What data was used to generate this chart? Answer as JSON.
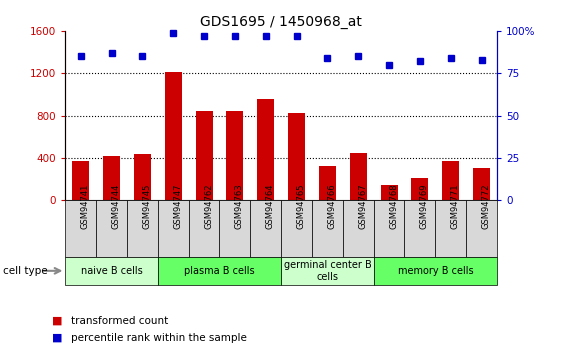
{
  "title": "GDS1695 / 1450968_at",
  "samples": [
    "GSM94741",
    "GSM94744",
    "GSM94745",
    "GSM94747",
    "GSM94762",
    "GSM94763",
    "GSM94764",
    "GSM94765",
    "GSM94766",
    "GSM94767",
    "GSM94768",
    "GSM94769",
    "GSM94771",
    "GSM94772"
  ],
  "transformed_count": [
    370,
    420,
    440,
    1210,
    840,
    840,
    960,
    820,
    320,
    450,
    145,
    210,
    370,
    300
  ],
  "percentile_rank": [
    85,
    87,
    85,
    99,
    97,
    97,
    97,
    97,
    84,
    85,
    80,
    82,
    84,
    83
  ],
  "bar_color": "#cc0000",
  "dot_color": "#0000cc",
  "ylim_left": [
    0,
    1600
  ],
  "ylim_right": [
    0,
    100
  ],
  "yticks_left": [
    0,
    400,
    800,
    1200,
    1600
  ],
  "yticks_right": [
    0,
    25,
    50,
    75,
    100
  ],
  "ytick_labels_right": [
    "0",
    "25",
    "50",
    "75",
    "100%"
  ],
  "cell_types": [
    {
      "label": "naive B cells",
      "start": 0,
      "end": 3,
      "color": "#ccffcc"
    },
    {
      "label": "plasma B cells",
      "start": 3,
      "end": 7,
      "color": "#66ff66"
    },
    {
      "label": "germinal center B\ncells",
      "start": 7,
      "end": 10,
      "color": "#ccffcc"
    },
    {
      "label": "memory B cells",
      "start": 10,
      "end": 14,
      "color": "#66ff66"
    }
  ],
  "legend_bar_label": "transformed count",
  "legend_dot_label": "percentile rank within the sample",
  "cell_type_label": "cell type",
  "tick_color_left": "#cc0000",
  "tick_color_right": "#0000cc",
  "background_color": "#ffffff",
  "sample_bg": "#d8d8d8",
  "gridline_color": "#000000"
}
